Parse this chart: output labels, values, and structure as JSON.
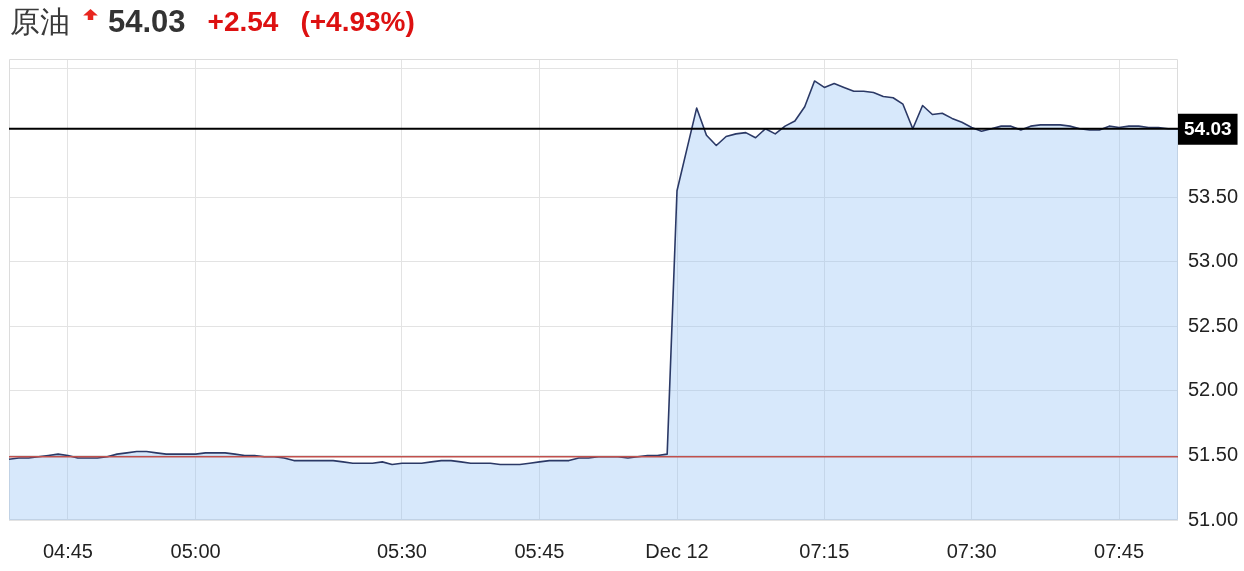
{
  "chart_data": {
    "type": "area",
    "title": "原油",
    "subtitle": "54.03",
    "annotations": [
      "+2.54",
      "(+4.93%)"
    ],
    "categories": [
      null,
      null,
      null,
      null,
      null,
      null,
      "04:45",
      null,
      null,
      null,
      null,
      null,
      null,
      null,
      null,
      null,
      null,
      null,
      null,
      "05:00",
      null,
      null,
      null,
      null,
      null,
      null,
      null,
      null,
      null,
      null,
      null,
      null,
      null,
      null,
      null,
      null,
      null,
      null,
      null,
      null,
      "05:30",
      null,
      null,
      null,
      null,
      null,
      null,
      null,
      null,
      null,
      null,
      null,
      null,
      null,
      "05:45",
      null,
      null,
      null,
      null,
      null,
      null,
      null,
      null,
      null,
      null,
      null,
      null,
      null,
      "Dec 12",
      null,
      null,
      null,
      null,
      null,
      null,
      null,
      null,
      null,
      null,
      null,
      null,
      null,
      null,
      "07:15",
      null,
      null,
      null,
      null,
      null,
      null,
      null,
      null,
      null,
      null,
      null,
      null,
      null,
      null,
      "07:30",
      null,
      null,
      null,
      null,
      null,
      null,
      null,
      null,
      null,
      null,
      null,
      null,
      null,
      null,
      "07:45",
      null,
      null,
      null,
      null,
      null,
      null
    ],
    "values": [
      51.47,
      51.48,
      51.48,
      51.49,
      51.5,
      51.51,
      51.5,
      51.48,
      51.48,
      51.48,
      51.49,
      51.51,
      51.52,
      51.53,
      51.53,
      51.52,
      51.51,
      51.51,
      51.51,
      51.51,
      51.52,
      51.52,
      51.52,
      51.51,
      51.5,
      51.5,
      51.49,
      51.49,
      51.48,
      51.46,
      51.46,
      51.46,
      51.46,
      51.46,
      51.45,
      51.44,
      51.44,
      51.44,
      51.45,
      51.43,
      51.44,
      51.44,
      51.44,
      51.45,
      51.46,
      51.46,
      51.45,
      51.44,
      51.44,
      51.44,
      51.43,
      51.43,
      51.43,
      51.44,
      51.45,
      51.46,
      51.46,
      51.46,
      51.48,
      51.48,
      51.49,
      51.49,
      51.49,
      51.48,
      51.49,
      51.5,
      51.5,
      51.51,
      53.55,
      53.87,
      54.19,
      53.98,
      53.9,
      53.97,
      53.99,
      54.0,
      53.96,
      54.03,
      53.99,
      54.05,
      54.09,
      54.2,
      54.4,
      54.35,
      54.38,
      54.35,
      54.32,
      54.32,
      54.31,
      54.28,
      54.27,
      54.22,
      54.03,
      54.21,
      54.14,
      54.15,
      54.11,
      54.08,
      54.04,
      54.01,
      54.03,
      54.05,
      54.05,
      54.02,
      54.05,
      54.06,
      54.06,
      54.06,
      54.05,
      54.03,
      54.02,
      54.02,
      54.05,
      54.04,
      54.05,
      54.05,
      54.04,
      54.04,
      54.03,
      54.03
    ],
    "color": "#2b3966",
    "ylim": [
      51,
      54.57
    ],
    "yticks": [
      {
        "value": 51,
        "label": "51.00"
      },
      {
        "value": 51.5,
        "label": "51.50"
      },
      {
        "value": 52,
        "label": "52.00"
      },
      {
        "value": 52.5,
        "label": "52.50"
      },
      {
        "value": 53,
        "label": "53.00"
      },
      {
        "value": 53.5,
        "label": "53.50"
      },
      {
        "value": 54.5,
        "label": null
      }
    ],
    "grid": true,
    "ref_lines": [
      {
        "axis": "y",
        "value": 54.03,
        "label": "54.03",
        "color": "#000000"
      },
      {
        "axis": "y",
        "value": 51.49,
        "color": "#c0504d"
      }
    ]
  }
}
